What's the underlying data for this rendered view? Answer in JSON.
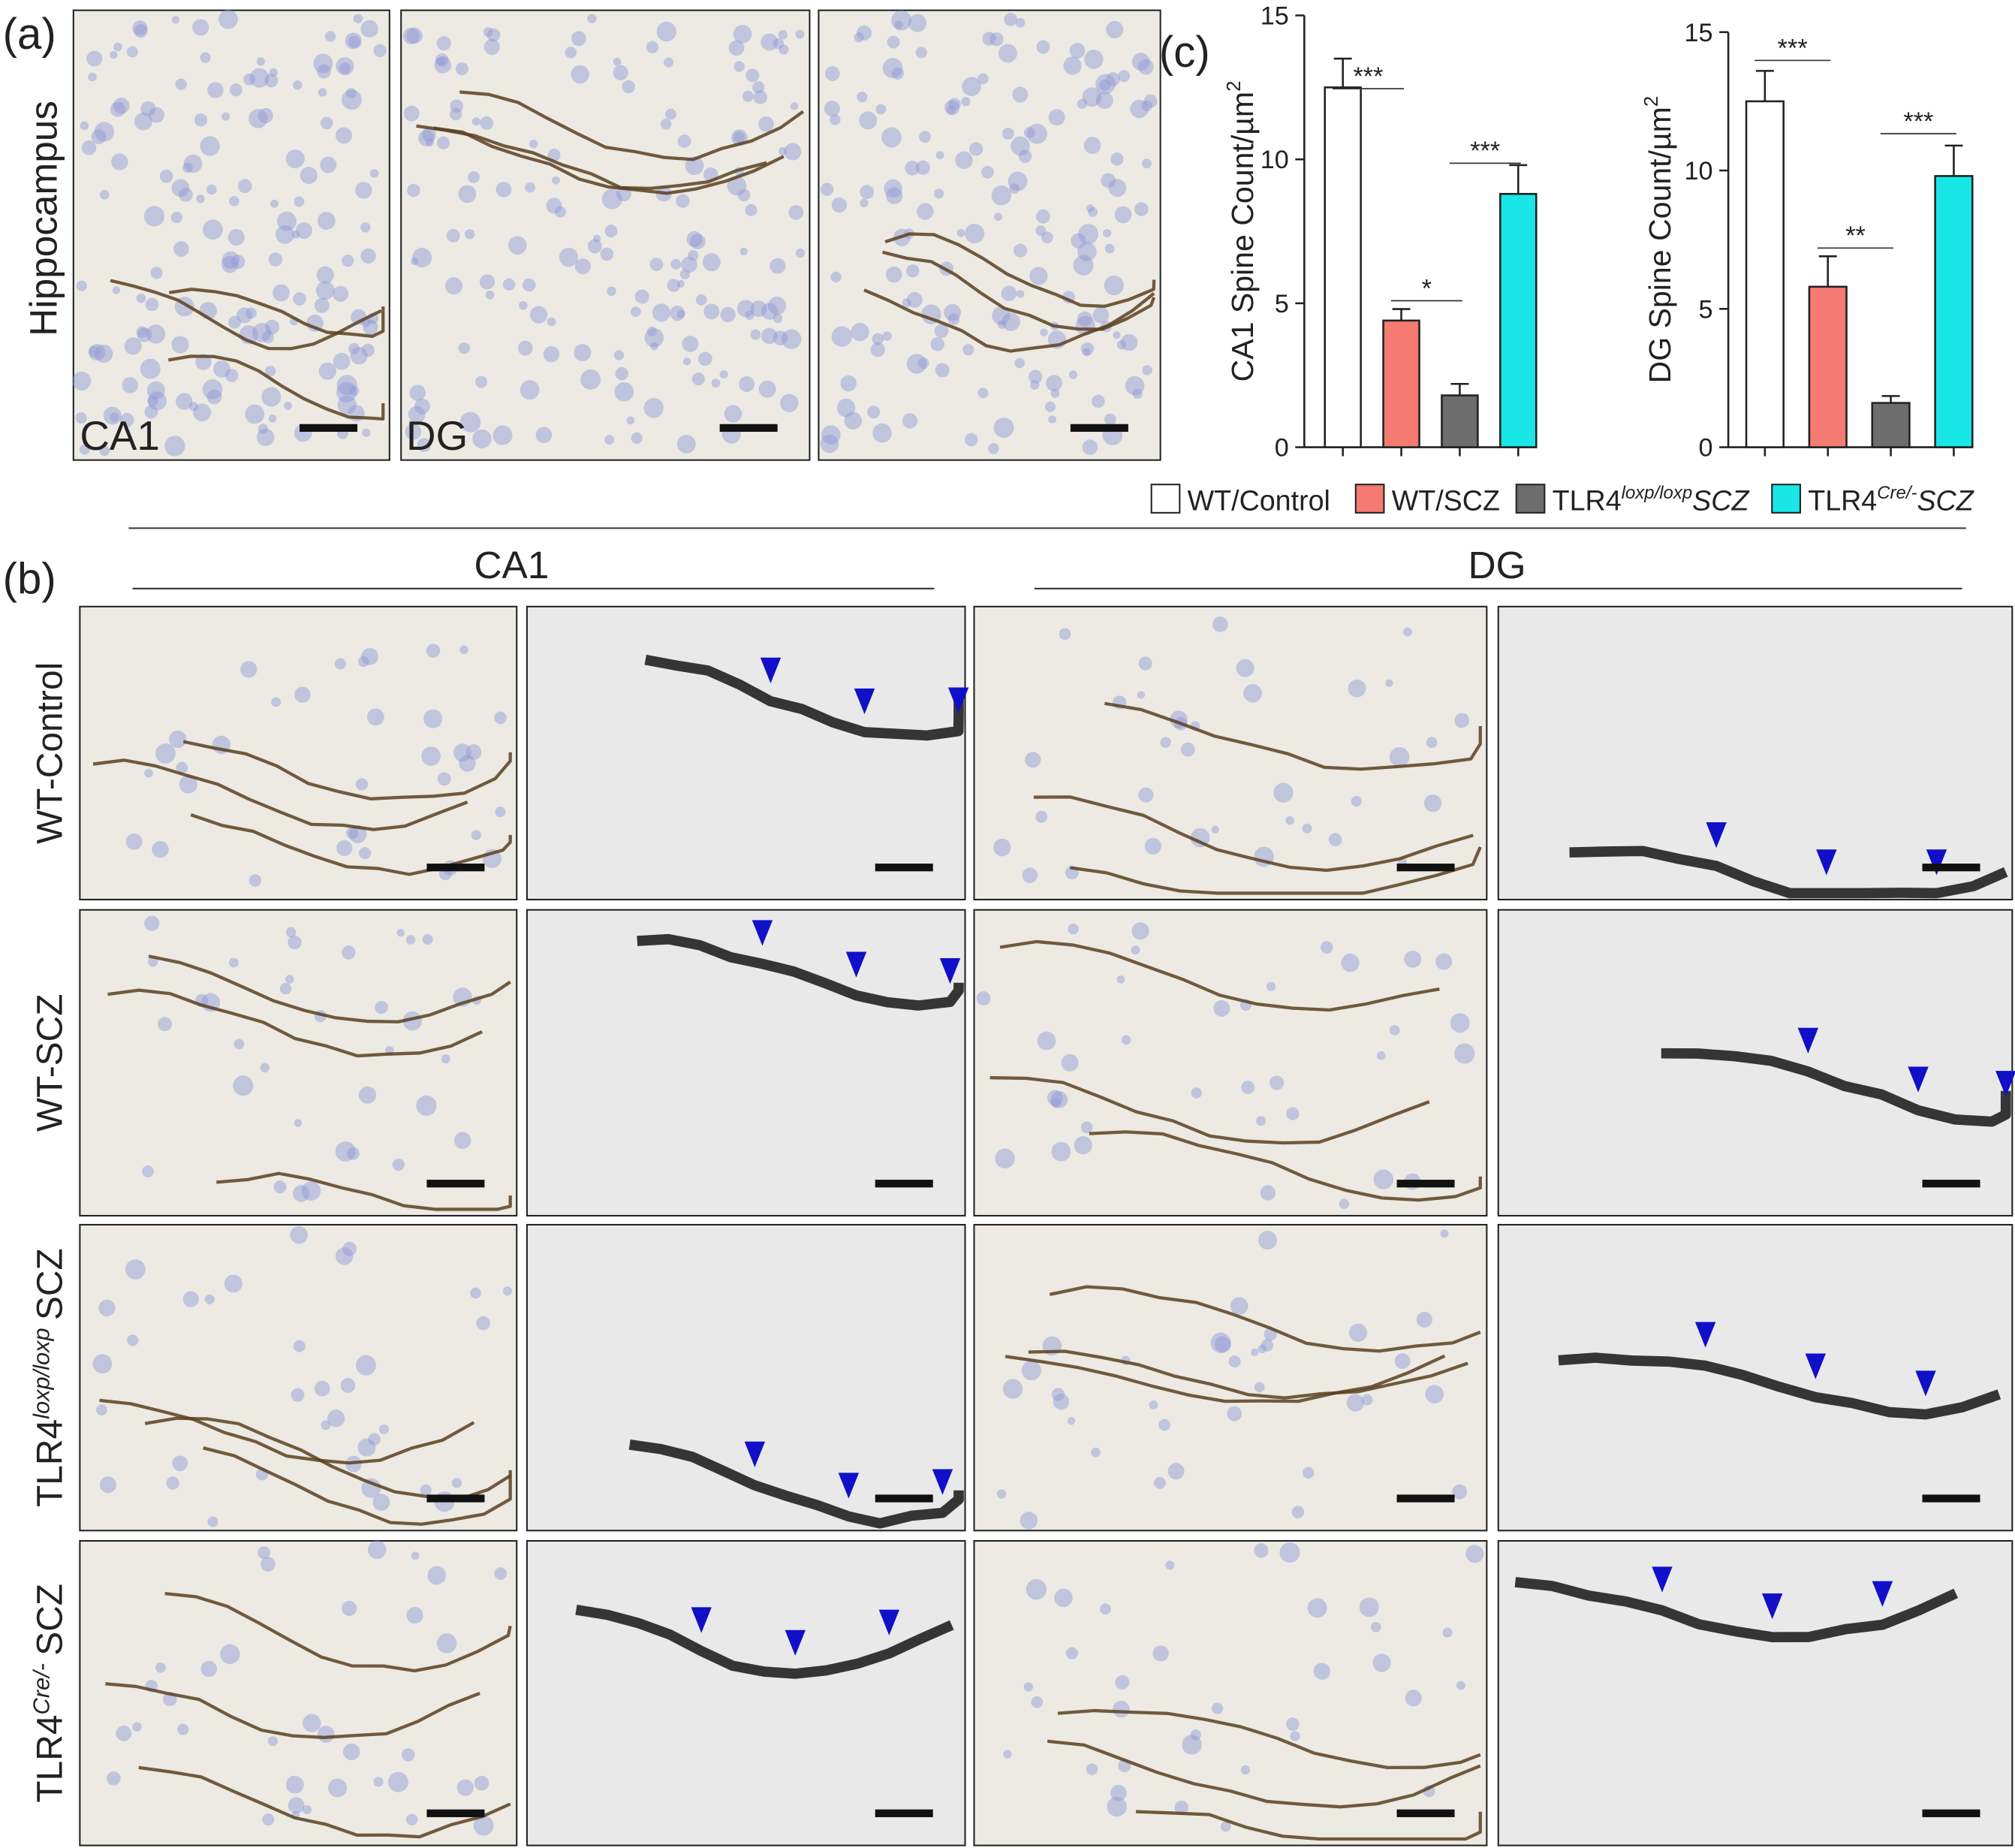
{
  "figure": {
    "panel_a": {
      "label": "(a)",
      "region": "Hippocampus",
      "images": [
        "CA1",
        "DG"
      ]
    },
    "panel_b": {
      "label": "(b)",
      "columns": [
        "CA1",
        "DG"
      ],
      "rows": [
        {
          "base": "WT-Control"
        },
        {
          "base": "WT-SCZ"
        },
        {
          "base": "TLR4",
          "sup": "loxp/loxp",
          "suffix": "SCZ"
        },
        {
          "base": "TLR4",
          "sup": "Cre/-",
          "suffix": "SCZ"
        }
      ]
    },
    "panel_c": {
      "label": "(c)",
      "legend": [
        {
          "base": "WT/Control"
        },
        {
          "base": "WT/SCZ"
        },
        {
          "base": "TLR4",
          "sup": "loxp/loxp",
          "suffix": "SCZ"
        },
        {
          "base": "TLR4",
          "sup": "Cre/-",
          "suffix": "SCZ"
        }
      ]
    }
  },
  "chart_data": [
    {
      "type": "bar",
      "ylabel": {
        "text": "CA1 Spine Count/µm",
        "sup": "2"
      },
      "categories": [
        null,
        null,
        null,
        null
      ],
      "values": [
        12.5,
        4.4,
        1.8,
        8.8
      ],
      "errors": [
        1.0,
        0.4,
        0.4,
        1.0
      ],
      "colors": [
        "#ffffff",
        "#f47a72",
        "#6d6d6d",
        "#19e6e6"
      ],
      "ylim": [
        0,
        15
      ],
      "yticks": [
        0,
        5,
        10,
        15
      ],
      "annotations": [
        "***",
        "*",
        "***"
      ]
    },
    {
      "type": "bar",
      "ylabel": {
        "text": "DG Spine Count/µm",
        "sup": "2"
      },
      "categories": [
        null,
        null,
        null,
        null
      ],
      "values": [
        12.5,
        5.8,
        1.6,
        9.8
      ],
      "errors": [
        1.1,
        1.1,
        0.25,
        1.1
      ],
      "colors": [
        "#ffffff",
        "#f47a72",
        "#6d6d6d",
        "#19e6e6"
      ],
      "ylim": [
        0,
        15
      ],
      "yticks": [
        0,
        5,
        10,
        15
      ],
      "annotations": [
        "***",
        "**",
        "***"
      ]
    }
  ]
}
